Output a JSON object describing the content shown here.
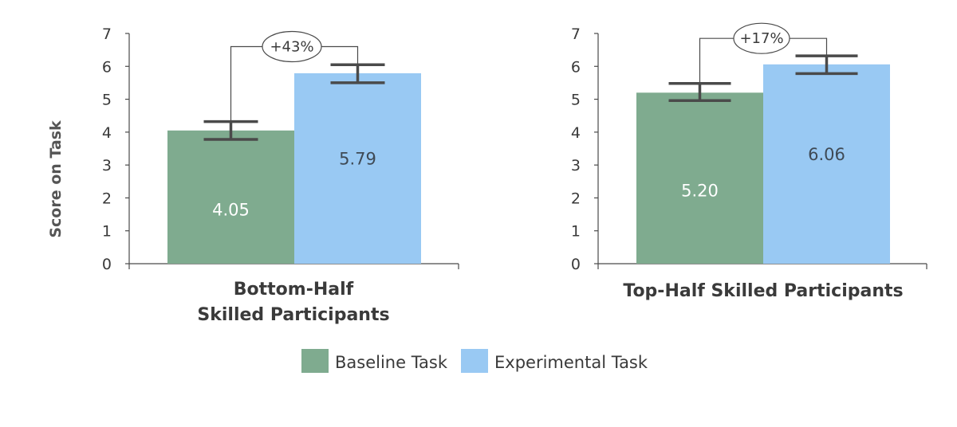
{
  "chart_data": {
    "type": "bar",
    "ylabel": "Score on Task",
    "ylim": [
      0,
      7
    ],
    "yticks": [
      0,
      1,
      2,
      3,
      4,
      5,
      6,
      7
    ],
    "series_names": [
      "Baseline Task",
      "Experimental Task"
    ],
    "colors": {
      "baseline": "#7fab8f",
      "experimental": "#99c9f3"
    },
    "groups": [
      {
        "label_lines": [
          "Bottom-Half",
          "Skilled Participants"
        ],
        "values": [
          4.05,
          5.79
        ],
        "value_labels": [
          "4.05",
          "5.79"
        ],
        "error_bars": [
          [
            3.78,
            4.32
          ],
          [
            5.5,
            6.05
          ]
        ],
        "pct_label": "+43%",
        "bracket_top": 6.6
      },
      {
        "label_lines": [
          "Top-Half Skilled Participants"
        ],
        "values": [
          5.2,
          6.06
        ],
        "value_labels": [
          "5.20",
          "6.06"
        ],
        "error_bars": [
          [
            4.96,
            5.48
          ],
          [
            5.78,
            6.32
          ]
        ],
        "pct_label": "+17%",
        "bracket_top": 6.85
      }
    ]
  }
}
